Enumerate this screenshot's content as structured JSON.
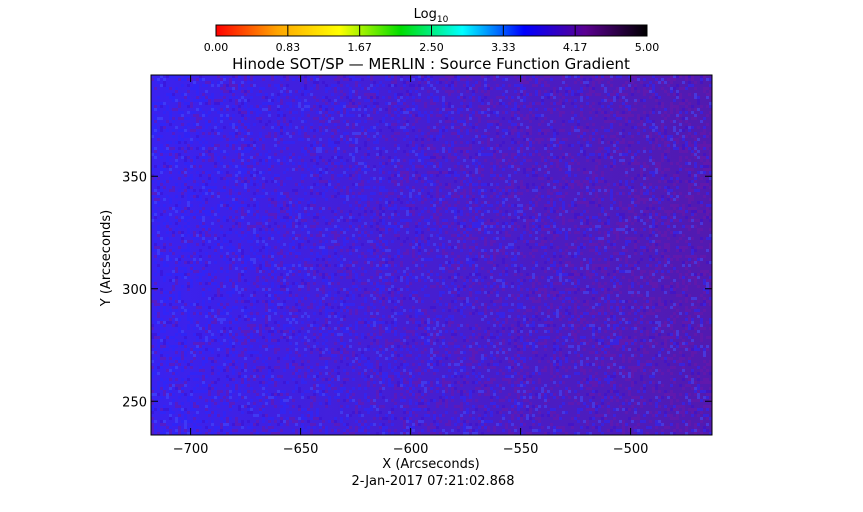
{
  "chart_data": {
    "type": "heatmap",
    "title": "Hinode SOT/SP — MERLIN : Source Function Gradient",
    "xlabel": "X (Arcseconds)",
    "ylabel": "Y (Arcseconds)",
    "xlim": [
      -718,
      -463
    ],
    "ylim": [
      235,
      395
    ],
    "x_ticks": [
      -700,
      -650,
      -600,
      -550,
      -500
    ],
    "y_ticks": [
      250,
      300,
      350
    ],
    "timestamp": "2-Jan-2017 07:21:02.868",
    "colorbar": {
      "label_base": "Log",
      "label_sub": "10",
      "range": [
        0,
        5
      ],
      "ticks": [
        "0.00",
        "0.83",
        "1.67",
        "2.50",
        "3.33",
        "4.17",
        "5.00"
      ],
      "colors": [
        "#ff0000",
        "#ffa500",
        "#ffff00",
        "#00dd00",
        "#00ffff",
        "#0000ff",
        "#5a0090",
        "#000000"
      ]
    },
    "field_description": {
      "dominant_value_left": 4.1,
      "dominant_value_right": 4.4,
      "left_color": "#3a22f0",
      "right_color": "#521ab0",
      "noise_colors": [
        "#2828ff",
        "#4050ff",
        "#6e18a8",
        "#3a10d0"
      ]
    }
  }
}
